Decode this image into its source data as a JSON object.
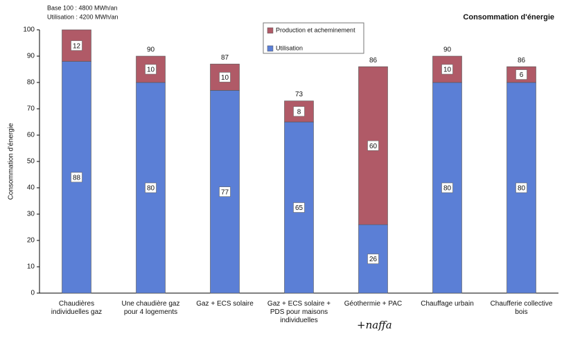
{
  "chart_data": {
    "type": "stacked_bar",
    "title": "Consommation d'énergie",
    "notes": [
      "Base 100 : 4800 MWh/an",
      "Utilisation : 4200 MWh/an"
    ],
    "y_label": "Consommation d'énergie",
    "annotation": "+naffa",
    "categories": [
      "Chaudières individuelles gaz",
      "Une chaudière gaz pour 4 logements",
      "Gaz + ECS solaire",
      "Gaz + ECS solaire + PDS pour maisons individuelles",
      "Géothermie + PAC",
      "Chauffage urbain",
      "Chaufferie collective bois"
    ],
    "series": [
      {
        "name": "Utilisation",
        "color": "#5b7fd6",
        "values": [
          88,
          80,
          77,
          65,
          26,
          80,
          80
        ]
      },
      {
        "name": "Production et acheminement",
        "color": "#b05a67",
        "values": [
          12,
          10,
          10,
          8,
          60,
          10,
          6
        ]
      }
    ],
    "totals": [
      null,
      90,
      87,
      73,
      86,
      90,
      86
    ],
    "ylim": [
      0,
      100
    ],
    "yticks": [
      0,
      10,
      20,
      30,
      40,
      50,
      60,
      70,
      80,
      90,
      100
    ]
  }
}
